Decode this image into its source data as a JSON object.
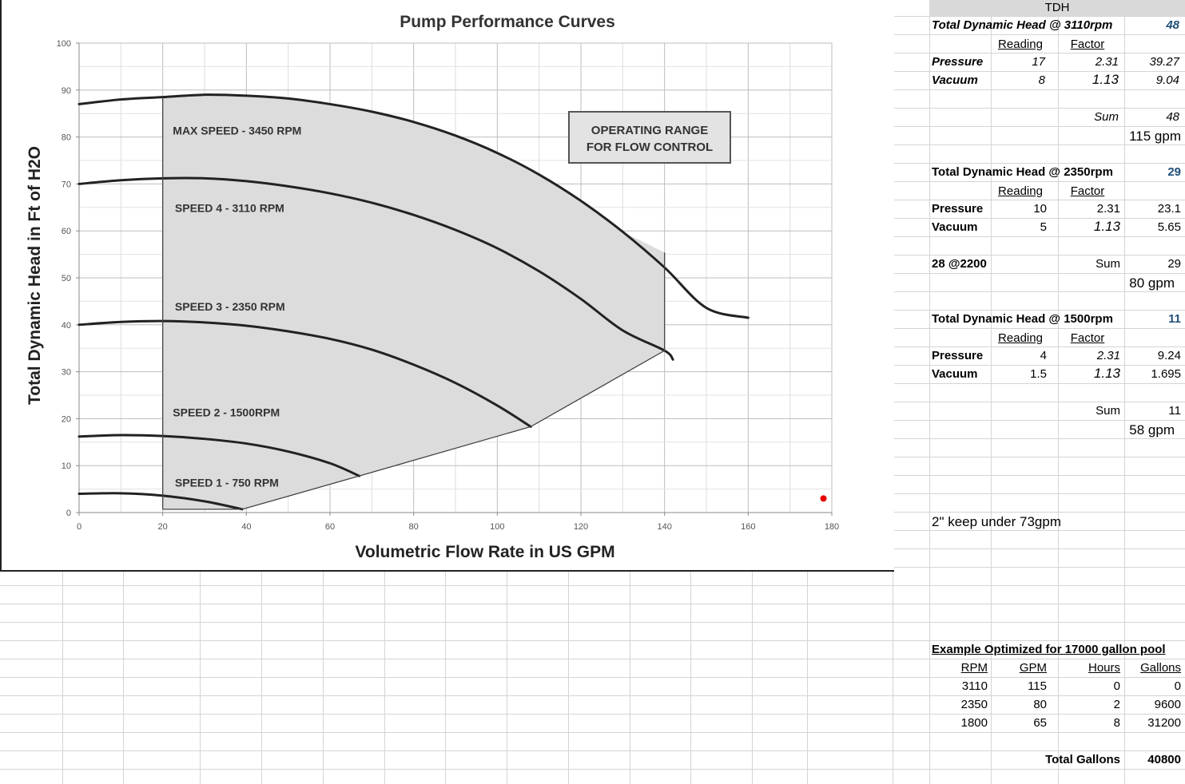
{
  "chart_data": {
    "type": "line",
    "title": "Pump Performance Curves",
    "xlabel": "Volumetric Flow Rate in US GPM",
    "ylabel": "Total Dynamic Head in Ft of H2O",
    "xlim": [
      0,
      180
    ],
    "ylim": [
      0,
      100
    ],
    "xticks": [
      "0",
      "20",
      "40",
      "60",
      "80",
      "100",
      "120",
      "140",
      "160",
      "180"
    ],
    "yticks": [
      "0",
      "10",
      "20",
      "30",
      "40",
      "50",
      "60",
      "70",
      "80",
      "90",
      "100"
    ],
    "grid": true,
    "series": [
      {
        "name": "MAX SPEED - 3450 RPM",
        "x": [
          0,
          10,
          20,
          30,
          40,
          50,
          60,
          70,
          80,
          90,
          100,
          110,
          120,
          130,
          140,
          150,
          160
        ],
        "y": [
          87,
          88,
          88.5,
          89,
          88.8,
          88.2,
          87,
          85.4,
          83.2,
          80.3,
          76.6,
          72,
          66.4,
          59.8,
          52.2,
          43.6,
          41.5
        ]
      },
      {
        "name": "SPEED 4 - 3110 RPM",
        "x": [
          0,
          10,
          20,
          30,
          40,
          50,
          60,
          70,
          80,
          90,
          100,
          110,
          120,
          130,
          140,
          142
        ],
        "y": [
          70,
          70.8,
          71.2,
          71.2,
          70.6,
          69.5,
          68,
          66,
          63.4,
          60.2,
          56.3,
          51.4,
          45.5,
          38.8,
          34.5,
          32.6
        ]
      },
      {
        "name": "SPEED 3 - 2350 RPM",
        "x": [
          0,
          10,
          20,
          30,
          40,
          50,
          60,
          70,
          80,
          90,
          100,
          108
        ],
        "y": [
          40,
          40.6,
          40.8,
          40.5,
          39.8,
          38.6,
          37,
          34.7,
          31.5,
          27.6,
          22.8,
          18.3
        ]
      },
      {
        "name": "SPEED 2 - 1500RPM",
        "x": [
          0,
          10,
          20,
          30,
          40,
          50,
          60,
          67
        ],
        "y": [
          16.2,
          16.5,
          16.3,
          15.7,
          14.7,
          13,
          10.5,
          7.8
        ]
      },
      {
        "name": "SPEED 1 - 750 RPM",
        "x": [
          0,
          10,
          20,
          30,
          39
        ],
        "y": [
          4,
          4.1,
          3.6,
          2.4,
          0.7
        ]
      }
    ],
    "operating_range_polygon": [
      [
        20,
        88.4
      ],
      [
        30,
        89
      ],
      [
        40,
        88.8
      ],
      [
        50,
        88.2
      ],
      [
        60,
        87
      ],
      [
        70,
        85.4
      ],
      [
        80,
        83.2
      ],
      [
        90,
        80.3
      ],
      [
        100,
        76.6
      ],
      [
        110,
        72
      ],
      [
        120,
        66.4
      ],
      [
        130,
        59.8
      ],
      [
        140,
        55.4
      ],
      [
        140,
        34.5
      ],
      [
        108,
        18.3
      ],
      [
        67,
        7.8
      ],
      [
        39,
        0.7
      ],
      [
        20,
        0.7
      ]
    ],
    "operating_edge": [
      [
        140,
        55.4
      ],
      [
        140,
        34.5
      ],
      [
        108,
        18.3
      ],
      [
        67,
        7.8
      ],
      [
        39,
        0.7
      ],
      [
        20,
        0.7
      ]
    ],
    "range_box_label": [
      "OPERATING RANGE",
      "FOR FLOW CONTROL"
    ],
    "marker_point": {
      "x": 178,
      "y": 3,
      "color": "#e60000"
    },
    "colors": {
      "curve": "#222222",
      "range_fill": "#dcdcdc",
      "grid": "#c8c8c8",
      "box_fill": "#e3e3e3"
    }
  },
  "sheet": {
    "tdh_header": "TDH",
    "block1": {
      "title": "Total Dynamic Head @ 3110rpm",
      "total": "48",
      "reading_label": "Reading",
      "factor_label": "Factor",
      "pressure_label": "Pressure",
      "pressure_reading": "17",
      "pressure_factor": "2.31",
      "pressure_value": "39.27",
      "vacuum_label": "Vacuum",
      "vacuum_reading": "8",
      "vacuum_factor": "1.13",
      "vacuum_value": "9.04",
      "sum_label": "Sum",
      "sum_value": "48",
      "gpm": "115 gpm"
    },
    "block2": {
      "title": "Total Dynamic Head @ 2350rpm",
      "total": "29",
      "reading_label": "Reading",
      "factor_label": "Factor",
      "pressure_label": "Pressure",
      "pressure_reading": "10",
      "pressure_factor": "2.31",
      "pressure_value": "23.1",
      "vacuum_label": "Vacuum",
      "vacuum_reading": "5",
      "vacuum_factor": "1.13",
      "vacuum_value": "5.65",
      "note": "28 @2200",
      "sum_label": "Sum",
      "sum_value": "29",
      "gpm": "80 gpm"
    },
    "block3": {
      "title": "Total Dynamic Head @ 1500rpm",
      "total": "11",
      "reading_label": "Reading",
      "factor_label": "Factor",
      "pressure_label": "Pressure",
      "pressure_reading": "4",
      "pressure_factor": "2.31",
      "pressure_value": "9.24",
      "vacuum_label": "Vacuum",
      "vacuum_reading": "1.5",
      "vacuum_factor": "1.13",
      "vacuum_value": "1.695",
      "sum_label": "Sum",
      "sum_value": "11",
      "gpm": "58 gpm"
    },
    "pipe_note": "2\" keep under 73gpm",
    "example": {
      "title": "Example Optimized for 17000 gallon pool",
      "headers": [
        "RPM",
        "GPM",
        "Hours",
        "Gallons"
      ],
      "rows": [
        [
          "3110",
          "115",
          "0",
          "0"
        ],
        [
          "2350",
          "80",
          "2",
          "9600"
        ],
        [
          "1800",
          "65",
          "8",
          "31200"
        ]
      ],
      "total_label": "Total Gallons",
      "total_value": "40800"
    }
  }
}
